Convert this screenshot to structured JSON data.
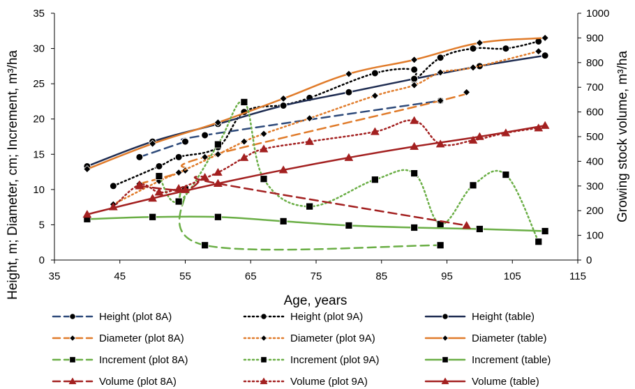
{
  "chart_data": {
    "type": "line",
    "x_axis": {
      "label": "Age, years",
      "min": 35,
      "max": 115,
      "ticks": [
        35,
        45,
        55,
        65,
        75,
        85,
        95,
        105,
        115
      ]
    },
    "y_axis_left": {
      "label": "Height, m; Diameter, cm; Increment, m³/ha",
      "min": 0,
      "max": 35,
      "ticks": [
        0,
        5,
        10,
        15,
        20,
        25,
        30,
        35
      ]
    },
    "y_axis_right": {
      "label": "Growing stock volume, m³/ha",
      "min": 0,
      "max": 1000,
      "ticks": [
        0,
        100,
        200,
        300,
        400,
        500,
        600,
        700,
        800,
        900,
        1000
      ]
    },
    "grid": false,
    "legend_position": "bottom",
    "series": [
      {
        "name": "Height (plot 8A)",
        "axis": "left",
        "style": "dashed",
        "marker": "circle",
        "color": "#2e4a7a",
        "x": [
          48,
          55,
          58,
          94
        ],
        "y": [
          14.6,
          16.8,
          17.7,
          22.6
        ]
      },
      {
        "name": "Height (plot 9A)",
        "axis": "left",
        "style": "dotted",
        "marker": "circle",
        "color": "#000000",
        "x": [
          44,
          51,
          54,
          60,
          64,
          70,
          74,
          84,
          90,
          90,
          94,
          99,
          104,
          109
        ],
        "y": [
          10.5,
          13.3,
          14.6,
          16,
          21,
          22,
          23,
          26.5,
          27,
          25.5,
          28.7,
          30,
          30,
          31
        ]
      },
      {
        "name": "Height (table)",
        "axis": "left",
        "style": "solid",
        "marker": "circle",
        "color": "#1f2d52",
        "x": [
          40,
          50,
          60,
          70,
          80,
          90,
          100,
          110
        ],
        "y": [
          13.3,
          16.8,
          19.3,
          21.9,
          23.8,
          25.7,
          27.5,
          29
        ]
      },
      {
        "name": "Diameter (plot 8A)",
        "axis": "left",
        "style": "dashed",
        "marker": "diamond",
        "color": "#e07b2a",
        "x": [
          48,
          55,
          58,
          94,
          98
        ],
        "y": [
          10.8,
          12.7,
          14.6,
          22.6,
          23.8
        ]
      },
      {
        "name": "Diameter (plot 9A)",
        "axis": "left",
        "style": "dotted",
        "marker": "diamond",
        "color": "#e07b2a",
        "x": [
          44,
          51,
          54,
          60,
          64,
          67,
          74,
          84,
          90,
          94,
          99,
          109
        ],
        "y": [
          7.9,
          11.2,
          12.4,
          15,
          16.8,
          17.9,
          20.1,
          23.3,
          24.8,
          26.6,
          27.3,
          29.6
        ]
      },
      {
        "name": "Diameter (table)",
        "axis": "left",
        "style": "solid",
        "marker": "diamond",
        "color": "#e07b2a",
        "x": [
          40,
          50,
          60,
          70,
          80,
          90,
          100,
          110
        ],
        "y": [
          12.9,
          16.5,
          19.5,
          22.9,
          26.4,
          28.4,
          30.8,
          31.5
        ]
      },
      {
        "name": "Increment (plot 8A)",
        "axis": "left",
        "style": "dashed",
        "marker": "square",
        "color": "#6aae45",
        "x": [
          54,
          55,
          58,
          94
        ],
        "y": [
          8.3,
          10,
          2.1,
          2.1
        ]
      },
      {
        "name": "Increment (plot 9A)",
        "axis": "left",
        "style": "dotted",
        "marker": "square",
        "color": "#6aae45",
        "x": [
          51,
          54,
          60,
          64,
          67,
          74,
          84,
          90,
          94,
          99,
          104,
          109
        ],
        "y": [
          11.9,
          8.3,
          16.4,
          22.4,
          11.5,
          7.6,
          11.4,
          12.3,
          5.1,
          10.6,
          12.1,
          2.6
        ]
      },
      {
        "name": "Increment (table)",
        "axis": "left",
        "style": "solid",
        "marker": "square",
        "color": "#6aae45",
        "x": [
          40,
          50,
          60,
          70,
          80,
          90,
          100,
          110
        ],
        "y": [
          5.8,
          6.1,
          6.1,
          5.5,
          4.9,
          4.6,
          4.4,
          4.1
        ]
      },
      {
        "name": "Volume (plot 8A)",
        "axis": "right",
        "style": "dashed",
        "marker": "triangle",
        "color": "#a32020",
        "x": [
          48,
          55,
          58,
          60,
          98
        ],
        "y": [
          300,
          285,
          335,
          310,
          140
        ]
      },
      {
        "name": "Volume (plot 9A)",
        "axis": "right",
        "style": "dotted",
        "marker": "triangle",
        "color": "#a32020",
        "x": [
          44,
          48,
          51,
          54,
          60,
          64,
          67,
          74,
          84,
          90,
          94,
          99,
          104,
          109
        ],
        "y": [
          215,
          305,
          275,
          290,
          355,
          415,
          450,
          480,
          520,
          565,
          470,
          485,
          515,
          535
        ]
      },
      {
        "name": "Volume (table)",
        "axis": "right",
        "style": "solid",
        "marker": "triangle",
        "color": "#a32020",
        "x": [
          40,
          50,
          60,
          70,
          80,
          90,
          100,
          110
        ],
        "y": [
          185,
          250,
          310,
          365,
          415,
          460,
          500,
          545
        ]
      }
    ]
  }
}
